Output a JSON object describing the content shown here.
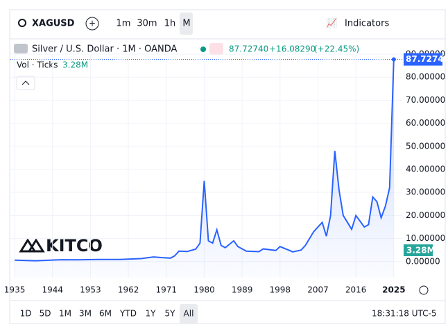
{
  "toolbar": {
    "symbol": "XAGUSD",
    "intervals": [
      "1m",
      "30m",
      "1h",
      "M"
    ],
    "indicators": "Indicators"
  },
  "legend": {
    "title": "Silver / U.S. Dollar · 1M · OANDA",
    "last": "87.72740",
    "change": "+16.08290",
    "change_pct": "(+22.45%)",
    "volume_label": "Vol · Ticks",
    "volume": "3.28M"
  },
  "watermark": "KITCO",
  "chart_data": {
    "type": "line",
    "color": "#2962ff",
    "grid": true,
    "x": [
      1935,
      1940,
      1946,
      1950,
      1955,
      1960,
      1965,
      1968,
      1970,
      1972,
      1973,
      1974,
      1976,
      1978,
      1979,
      1980,
      1981,
      1982,
      1983,
      1984,
      1985,
      1987,
      1988,
      1990,
      1993,
      1994,
      1997,
      1998,
      2000,
      2001,
      2003,
      2004,
      2006,
      2008,
      2009,
      2010,
      2011,
      2012,
      2013,
      2014,
      2015,
      2016,
      2018,
      2019,
      2020,
      2021,
      2022,
      2023,
      2024,
      2025
    ],
    "series": [
      {
        "name": "XAGUSD",
        "color": "#2962ff",
        "values": [
          0.6,
          0.35,
          0.8,
          0.75,
          0.9,
          0.91,
          1.29,
          2.0,
          1.7,
          1.5,
          2.5,
          4.5,
          4.4,
          5.4,
          8,
          35,
          9,
          8,
          13.8,
          7,
          6,
          9,
          6.5,
          4.5,
          4.3,
          5.5,
          4.8,
          6.5,
          5,
          4.2,
          5,
          7,
          13,
          17,
          11,
          20,
          48,
          31,
          20,
          17,
          14,
          20,
          15,
          16,
          28,
          26,
          19,
          24,
          32,
          87.7274
        ]
      }
    ],
    "xlim": [
      1934,
      2027
    ],
    "xticks": [
      1935,
      1944,
      1953,
      1962,
      1971,
      1980,
      1989,
      1998,
      2007,
      2016,
      2025
    ],
    "ylim": [
      -7,
      90
    ],
    "yticks": [
      {
        "value": 0,
        "label": "0.00000"
      },
      {
        "value": 10,
        "label": "10.00000"
      },
      {
        "value": 20,
        "label": "20.00000"
      },
      {
        "value": 30,
        "label": "30.00000"
      },
      {
        "value": 40,
        "label": "40.00000"
      },
      {
        "value": 50,
        "label": "50.00000"
      },
      {
        "value": 60,
        "label": "60.00000"
      },
      {
        "value": 70,
        "label": "70.00000"
      },
      {
        "value": 80,
        "label": "80.00000"
      },
      {
        "value": 90,
        "label": "90.00000"
      }
    ]
  },
  "ranges": [
    "1D",
    "5D",
    "1M",
    "3M",
    "6M",
    "YTD",
    "1Y",
    "5Y",
    "All"
  ],
  "clock": "18:31:18 UTC-5"
}
